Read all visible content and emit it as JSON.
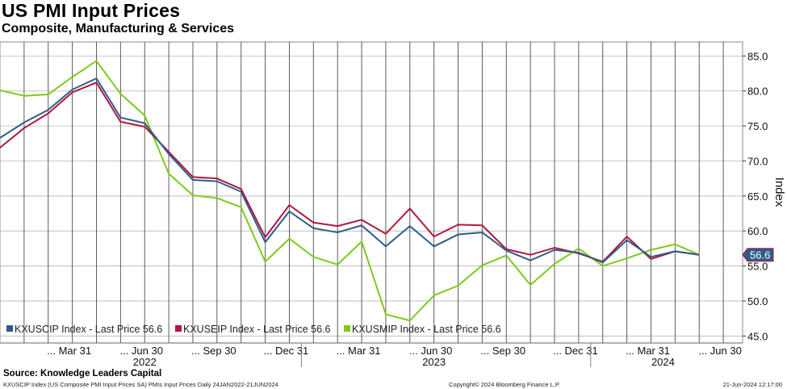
{
  "title": "US PMI Input Prices",
  "subtitle": "Composite, Manufacturing & Services",
  "source": "Source: Knowledge Leaders Capital",
  "footer": {
    "left": "KXUSCIP Index (US Composite PMI Input Prices SA) PMIs Input Prices  Daily 24JAN2022-21JUN2024",
    "middle": "Copyright© 2024 Bloomberg Finance L.P.",
    "right": "21-Jun-2024 12:17:00"
  },
  "chart_data": {
    "type": "line",
    "ylabel": "Index",
    "ylim": [
      44,
      87
    ],
    "yticks": [
      45,
      50,
      55,
      60,
      65,
      70,
      75,
      80,
      85
    ],
    "ytick_labels": [
      "45.0",
      "50.0",
      "55.0",
      "60.0",
      "65.0",
      "70.0",
      "75.0",
      "80.0",
      "85.0"
    ],
    "x": [
      "2022-01",
      "2022-02",
      "2022-03",
      "2022-04",
      "2022-05",
      "2022-06",
      "2022-07",
      "2022-08",
      "2022-09",
      "2022-10",
      "2022-11",
      "2022-12",
      "2023-01",
      "2023-02",
      "2023-03",
      "2023-04",
      "2023-05",
      "2023-06",
      "2023-07",
      "2023-08",
      "2023-09",
      "2023-10",
      "2023-11",
      "2023-12",
      "2024-01",
      "2024-02",
      "2024-03",
      "2024-04",
      "2024-05",
      "2024-06"
    ],
    "x_tick_labels": [
      "... Mar 31",
      "... Jun 30",
      "... Sep 30",
      "... Dec 31",
      "... Mar 31",
      "... Jun 30",
      "... Sep 30",
      "... Dec 31",
      "... Mar 31",
      "... Jun 30"
    ],
    "x_tick_months": [
      3,
      6,
      9,
      12,
      15,
      18,
      21,
      24,
      27,
      30
    ],
    "year_labels": [
      "2022",
      "2023",
      "2024"
    ],
    "year_label_months": [
      6,
      18,
      27.5
    ],
    "year_separators": [
      12.5,
      24.5
    ],
    "grid": true,
    "legend_position": "bottom-left",
    "series": [
      {
        "name": "KXUSCIP Index - Last Price 56.6",
        "color": "#2e5c8a",
        "values": [
          73.3,
          75.5,
          77.3,
          80.2,
          81.8,
          76.2,
          75.4,
          71.0,
          67.3,
          67.1,
          65.6,
          58.4,
          62.8,
          60.4,
          59.8,
          60.8,
          57.8,
          60.7,
          57.8,
          59.5,
          59.8,
          57.2,
          55.8,
          57.3,
          56.9,
          55.5,
          58.7,
          56.3,
          57.1,
          56.6
        ]
      },
      {
        "name": "KXUSEIP Index - Last Price 56.6",
        "color": "#b0183d",
        "values": [
          71.9,
          74.7,
          76.8,
          79.8,
          81.2,
          75.6,
          74.9,
          71.3,
          67.7,
          67.5,
          66.0,
          59.1,
          63.7,
          61.2,
          60.7,
          61.6,
          59.6,
          63.2,
          59.2,
          60.9,
          60.8,
          57.4,
          56.6,
          57.6,
          56.8,
          55.6,
          59.2,
          56.0,
          57.1,
          56.6
        ]
      },
      {
        "name": "KXUSMIP Index - Last Price 56.6",
        "color": "#7ccb1c",
        "values": [
          80.1,
          79.3,
          79.5,
          82.0,
          84.3,
          79.6,
          76.5,
          68.2,
          65.1,
          64.7,
          63.4,
          55.6,
          58.9,
          56.3,
          55.2,
          58.5,
          48.1,
          47.2,
          50.8,
          52.2,
          55.1,
          56.5,
          52.3,
          55.3,
          57.5,
          55.0,
          56.1,
          57.3,
          58.1,
          56.6
        ]
      }
    ],
    "last_value_label": "56.6"
  }
}
